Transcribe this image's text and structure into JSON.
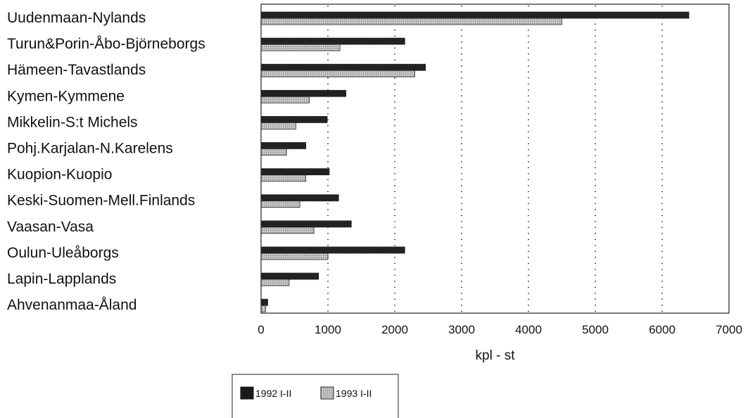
{
  "chart_data": {
    "type": "bar",
    "orientation": "horizontal",
    "categories": [
      "Uudenmaan-Nylands",
      "Turun&Porin-Åbo-Björneborgs",
      "Hämeen-Tavastlands",
      "Kymen-Kymmene",
      "Mikkelin-S:t Michels",
      "Pohj.Karjalan-N.Karelens",
      "Kuopion-Kuopio",
      "Keski-Suomen-Mell.Finlands",
      "Vaasan-Vasa",
      "Oulun-Uleåborgs",
      "Lapin-Lapplands",
      "Ahvenanmaa-Åland"
    ],
    "series": [
      {
        "name": "1992 I-II",
        "color": "#1a1a1a",
        "values": [
          6400,
          2150,
          2460,
          1270,
          990,
          670,
          1020,
          1160,
          1350,
          2150,
          860,
          100
        ]
      },
      {
        "name": "1993 I-II",
        "color": "#b4b4b4",
        "values": [
          4500,
          1180,
          2300,
          720,
          520,
          380,
          670,
          580,
          790,
          1000,
          420,
          70
        ]
      }
    ],
    "xlabel": "kpl - st",
    "ylabel": "",
    "title": "",
    "xlim": [
      0,
      7000
    ],
    "xticks": [
      "0",
      "1000",
      "2000",
      "3000",
      "4000",
      "5000",
      "6000",
      "7000"
    ],
    "grid": "vertical dotted",
    "legend": "bottom-left"
  }
}
